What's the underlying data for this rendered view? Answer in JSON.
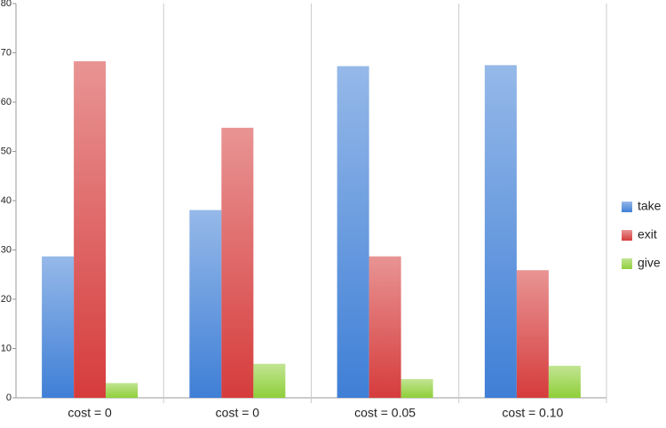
{
  "chart_data": {
    "type": "bar",
    "categories": [
      "cost = 0",
      "cost = 0",
      "cost = 0.05",
      "cost = 0.10"
    ],
    "series": [
      {
        "name": "take",
        "color": "#3f7fd6",
        "values": [
          28.7,
          38.1,
          67.3,
          67.5
        ]
      },
      {
        "name": "exit",
        "color": "#d63c3c",
        "values": [
          68.3,
          54.8,
          28.7,
          25.9
        ]
      },
      {
        "name": "give",
        "color": "#8fcf3a",
        "values": [
          3.0,
          6.9,
          3.8,
          6.5
        ]
      }
    ],
    "ylim": [
      0,
      80
    ],
    "yticks": [
      0,
      10,
      20,
      30,
      40,
      50,
      60,
      70,
      80
    ],
    "legend": "right"
  }
}
